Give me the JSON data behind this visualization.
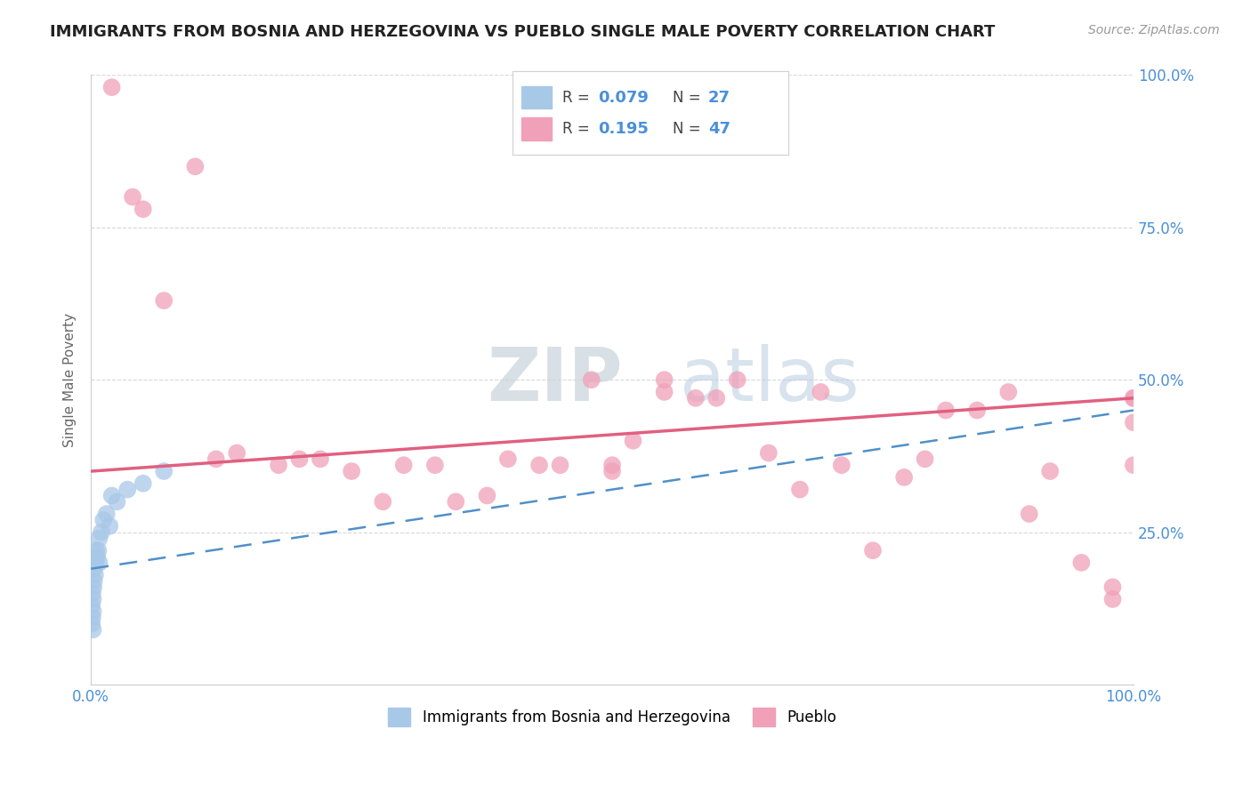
{
  "title": "IMMIGRANTS FROM BOSNIA AND HERZEGOVINA VS PUEBLO SINGLE MALE POVERTY CORRELATION CHART",
  "source": "Source: ZipAtlas.com",
  "ylabel": "Single Male Poverty",
  "legend_label_blue": "Immigrants from Bosnia and Herzegovina",
  "legend_label_pink": "Pueblo",
  "blue_color": "#a8c8e8",
  "pink_color": "#f0a0b8",
  "blue_line_color": "#5090c8",
  "pink_line_color": "#e06080",
  "title_color": "#222222",
  "axis_label_color": "#4a90d9",
  "grid_color": "#d8d8d8",
  "background_color": "#ffffff",
  "pink_line_x0": 0,
  "pink_line_y0": 35,
  "pink_line_x1": 100,
  "pink_line_y1": 47,
  "blue_line_x0": 0,
  "blue_line_y0": 19,
  "blue_line_x1": 100,
  "blue_line_y1": 45,
  "blue_pts_x": [
    0.1,
    0.1,
    0.15,
    0.15,
    0.2,
    0.2,
    0.2,
    0.25,
    0.3,
    0.3,
    0.4,
    0.4,
    0.5,
    0.5,
    0.6,
    0.7,
    0.8,
    0.8,
    1.0,
    1.2,
    1.5,
    1.8,
    2.0,
    2.5,
    3.5,
    5.0,
    7.0
  ],
  "blue_pts_y": [
    10,
    13,
    11,
    15,
    9,
    12,
    14,
    16,
    17,
    19,
    18,
    20,
    20,
    22,
    21,
    22,
    20,
    24,
    25,
    27,
    28,
    26,
    31,
    30,
    32,
    33,
    35
  ],
  "pink_pts_x": [
    2,
    4,
    5,
    7,
    10,
    12,
    14,
    18,
    20,
    22,
    25,
    28,
    30,
    33,
    35,
    38,
    40,
    43,
    45,
    48,
    50,
    50,
    52,
    55,
    55,
    58,
    60,
    62,
    65,
    68,
    70,
    72,
    75,
    78,
    80,
    82,
    85,
    88,
    90,
    92,
    95,
    98,
    98,
    100,
    100,
    100,
    100
  ],
  "pink_pts_y": [
    98,
    80,
    78,
    63,
    85,
    37,
    38,
    36,
    37,
    37,
    35,
    30,
    36,
    36,
    30,
    31,
    37,
    36,
    36,
    50,
    35,
    36,
    40,
    48,
    50,
    47,
    47,
    50,
    38,
    32,
    48,
    36,
    22,
    34,
    37,
    45,
    45,
    48,
    28,
    35,
    20,
    14,
    16,
    36,
    47,
    43,
    47
  ],
  "xlim": [
    0,
    100
  ],
  "ylim": [
    0,
    100
  ],
  "yticks": [
    25,
    50,
    75,
    100
  ],
  "xticks": [
    0,
    100
  ]
}
